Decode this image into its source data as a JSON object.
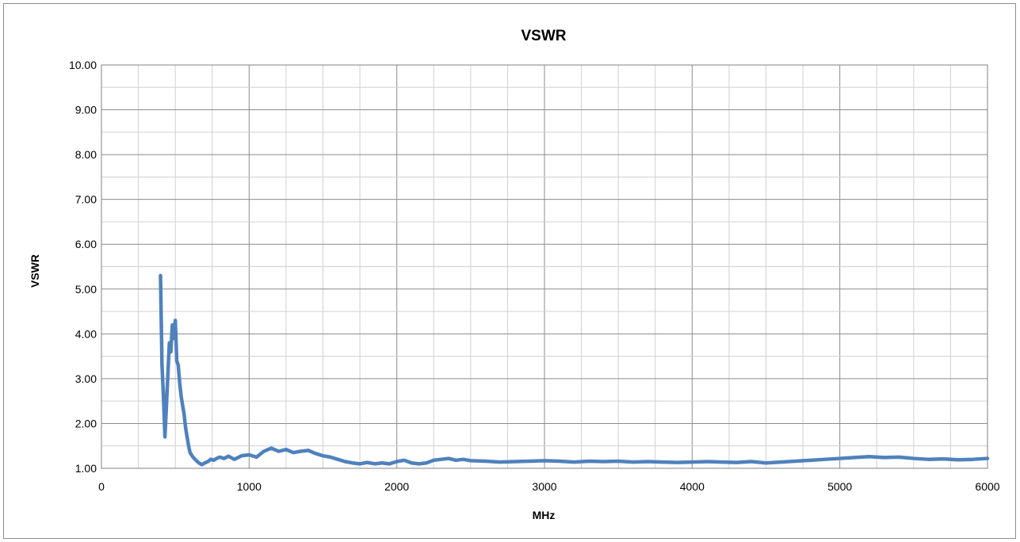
{
  "chart_data": {
    "type": "line",
    "title": "VSWR",
    "xlabel": "MHz",
    "ylabel": "VSWR",
    "xlim": [
      0,
      6000
    ],
    "ylim": [
      1.0,
      10.0
    ],
    "x_ticks": [
      "0",
      "1000",
      "2000",
      "3000",
      "4000",
      "5000",
      "6000"
    ],
    "y_ticks": [
      "1.00",
      "2.00",
      "3.00",
      "4.00",
      "5.00",
      "6.00",
      "7.00",
      "8.00",
      "9.00",
      "10.00"
    ],
    "grid": true,
    "legend": "none",
    "series_color": "#4f81bd",
    "series": [
      {
        "x": [
          400,
          410,
          420,
          430,
          440,
          450,
          460,
          470,
          480,
          490,
          500,
          510,
          520,
          530,
          540,
          550,
          560,
          570,
          580,
          590,
          600,
          620,
          640,
          660,
          680,
          700,
          720,
          740,
          760,
          780,
          800,
          830,
          860,
          900,
          950,
          1000,
          1050,
          1100,
          1150,
          1200,
          1250,
          1300,
          1350,
          1400,
          1450,
          1500,
          1550,
          1600,
          1650,
          1700,
          1750,
          1800,
          1850,
          1900,
          1950,
          2000,
          2050,
          2100,
          2150,
          2200,
          2250,
          2300,
          2350,
          2400,
          2450,
          2500,
          2600,
          2700,
          2800,
          2900,
          3000,
          3100,
          3200,
          3300,
          3400,
          3500,
          3600,
          3700,
          3800,
          3900,
          4000,
          4100,
          4200,
          4300,
          4400,
          4500,
          4600,
          4700,
          4800,
          4900,
          5000,
          5100,
          5200,
          5300,
          5400,
          5500,
          5600,
          5700,
          5800,
          5900,
          6000
        ],
        "y": [
          5.3,
          3.3,
          2.6,
          1.7,
          2.4,
          3.1,
          3.8,
          3.6,
          4.2,
          3.9,
          4.3,
          3.4,
          3.3,
          2.9,
          2.6,
          2.4,
          2.2,
          1.9,
          1.7,
          1.5,
          1.35,
          1.25,
          1.18,
          1.12,
          1.08,
          1.12,
          1.15,
          1.2,
          1.18,
          1.22,
          1.25,
          1.22,
          1.27,
          1.2,
          1.28,
          1.3,
          1.25,
          1.38,
          1.45,
          1.38,
          1.42,
          1.35,
          1.38,
          1.4,
          1.33,
          1.28,
          1.25,
          1.2,
          1.15,
          1.12,
          1.1,
          1.13,
          1.1,
          1.12,
          1.1,
          1.15,
          1.18,
          1.12,
          1.1,
          1.12,
          1.18,
          1.2,
          1.22,
          1.18,
          1.2,
          1.17,
          1.16,
          1.14,
          1.15,
          1.16,
          1.17,
          1.16,
          1.14,
          1.16,
          1.15,
          1.16,
          1.14,
          1.15,
          1.14,
          1.13,
          1.14,
          1.15,
          1.14,
          1.13,
          1.15,
          1.12,
          1.14,
          1.16,
          1.18,
          1.2,
          1.22,
          1.24,
          1.26,
          1.24,
          1.25,
          1.22,
          1.2,
          1.21,
          1.19,
          1.2,
          1.22
        ]
      }
    ]
  }
}
